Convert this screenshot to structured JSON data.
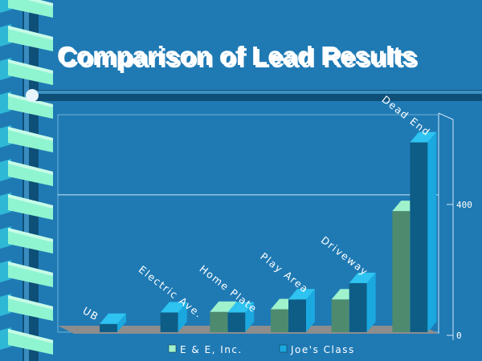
{
  "slide": {
    "title": "Comparison of Lead Results",
    "colors": {
      "background": "#1f7ab4",
      "spiral_light": "#8ff5d0",
      "spiral_mid": "#2fb8d6",
      "spiral_dark": "#0e4f78"
    }
  },
  "chart_data": {
    "type": "bar",
    "title": "",
    "xlabel": "",
    "ylabel": "",
    "categories": [
      "UB",
      "Electric Ave.",
      "Home Plate",
      "Play Area",
      "Driveway",
      "Dead End"
    ],
    "series": [
      {
        "name": "E & E, Inc.",
        "values": [
          0,
          0,
          62,
          70,
          100,
          370
        ],
        "colors": {
          "front": "#4e8a6e",
          "side": "#9ff2cc",
          "top": "#9ff2cc"
        }
      },
      {
        "name": "Joe's Class",
        "values": [
          25,
          60,
          60,
          100,
          150,
          580
        ],
        "colors": {
          "front": "#0e5d86",
          "side": "#1aa8df",
          "top": "#2ec3f0"
        }
      }
    ],
    "ylim": [
      0,
      640
    ],
    "yticks": [
      0,
      400
    ],
    "grid": true,
    "legend": "bottom",
    "three_d": true
  }
}
